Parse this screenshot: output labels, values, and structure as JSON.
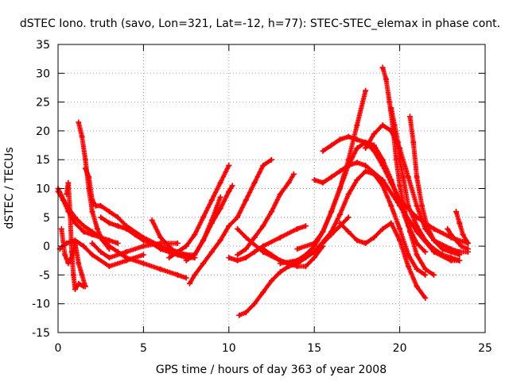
{
  "chart_data": {
    "type": "scatter",
    "title": "dSTEC Iono. truth (savo, Lon=321, Lat=-12, h=77): STEC-STEC_elemax in phase cont.",
    "xlabel": "GPS time / hours of day 363 of year 2008",
    "ylabel": "dSTEC  / TECUs",
    "xlim": [
      0,
      25
    ],
    "ylim": [
      -15,
      35
    ],
    "xticks": [
      0,
      5,
      10,
      15,
      20,
      25
    ],
    "yticks": [
      -15,
      -10,
      -5,
      0,
      5,
      10,
      15,
      20,
      25,
      30,
      35
    ],
    "grid": true,
    "marker": "+",
    "color": "#ff0000",
    "series": [
      {
        "x": [
          0.0,
          0.3,
          0.6,
          1.0,
          1.5,
          2.0,
          2.5,
          3.0,
          3.5
        ],
        "y": [
          9.5,
          8.0,
          6.0,
          4.0,
          2.5,
          2.0,
          1.5,
          1.0,
          0.5
        ]
      },
      {
        "x": [
          0.0,
          0.5,
          1.0,
          1.5,
          2.0,
          2.5,
          3.0,
          3.5,
          4.0,
          5.0,
          6.0,
          7.0,
          7.5
        ],
        "y": [
          10.0,
          7.0,
          5.0,
          3.5,
          2.5,
          1.5,
          0.0,
          -1.0,
          -2.0,
          -3.0,
          -4.0,
          -5.0,
          -5.5
        ]
      },
      {
        "x": [
          0.2,
          0.4,
          0.6,
          0.8,
          1.0,
          1.2,
          1.4,
          1.6
        ],
        "y": [
          3.0,
          -1.5,
          -3.0,
          -2.0,
          0.5,
          -3.0,
          -5.0,
          -7.0
        ]
      },
      {
        "x": [
          0.5,
          0.6,
          0.7,
          0.8,
          0.9,
          1.0,
          1.2,
          1.5
        ],
        "y": [
          9.0,
          11.0,
          6.0,
          -1.0,
          -5.0,
          -7.5,
          -6.5,
          -7.0
        ]
      },
      {
        "x": [
          0.1,
          0.5,
          1.0,
          1.5,
          2.0,
          3.0,
          4.0,
          5.0
        ],
        "y": [
          -0.5,
          0.5,
          1.0,
          0.0,
          -1.5,
          -3.5,
          -2.5,
          -1.5
        ]
      },
      {
        "x": [
          1.2,
          1.4,
          1.6,
          1.8,
          2.0,
          2.3,
          2.6,
          3.0
        ],
        "y": [
          21.5,
          19.0,
          15.0,
          10.0,
          6.0,
          3.0,
          1.0,
          -0.5
        ]
      },
      {
        "x": [
          1.6,
          1.8,
          2.0,
          2.2,
          2.5,
          3.0,
          3.5,
          4.0,
          5.0,
          6.0,
          7.0,
          7.5,
          8.0
        ],
        "y": [
          13.5,
          12.0,
          8.0,
          7.0,
          7.0,
          6.0,
          5.0,
          3.5,
          1.5,
          0.0,
          -1.0,
          -1.5,
          -2.0
        ]
      },
      {
        "x": [
          2.5,
          3.0,
          3.5,
          4.0,
          4.5,
          5.0,
          5.5,
          6.0,
          6.5,
          7.0,
          7.5,
          8.0
        ],
        "y": [
          5.0,
          4.0,
          3.5,
          3.0,
          2.0,
          1.0,
          0.5,
          -0.5,
          -1.0,
          -1.5,
          -2.0,
          -2.0
        ]
      },
      {
        "x": [
          2.0,
          2.5,
          3.0,
          4.0,
          5.0,
          6.0,
          7.0
        ],
        "y": [
          0.5,
          -1.0,
          -2.0,
          -1.0,
          0.0,
          0.5,
          0.5
        ]
      },
      {
        "x": [
          6.5,
          7.0,
          7.5,
          8.0,
          8.5,
          9.0,
          9.5,
          10.0
        ],
        "y": [
          -2.0,
          -1.0,
          0.0,
          2.0,
          5.0,
          8.0,
          11.0,
          14.0
        ]
      },
      {
        "x": [
          5.5,
          6.0,
          7.0,
          8.0,
          8.5,
          9.0,
          9.5
        ],
        "y": [
          4.5,
          1.5,
          -1.5,
          -1.5,
          1.0,
          4.5,
          8.5
        ]
      },
      {
        "x": [
          7.5,
          8.0,
          8.5,
          9.0,
          9.5,
          10.0,
          10.2
        ],
        "y": [
          -2.5,
          -1.5,
          1.0,
          4.0,
          6.5,
          9.5,
          10.5
        ]
      },
      {
        "x": [
          7.7,
          8.0,
          8.5,
          9.0,
          9.5,
          10.0,
          10.5,
          11.0,
          11.5,
          12.0,
          12.5
        ],
        "y": [
          -6.5,
          -5.0,
          -3.0,
          -1.0,
          1.0,
          3.5,
          5.0,
          8.0,
          11.0,
          14.0,
          15.0
        ]
      },
      {
        "x": [
          10.0,
          10.5,
          11.0,
          11.5,
          12.0,
          13.0,
          14.0,
          14.5
        ],
        "y": [
          -2.0,
          -2.5,
          -2.0,
          -1.0,
          0.0,
          1.5,
          3.0,
          3.5
        ]
      },
      {
        "x": [
          10.6,
          11.0,
          11.5,
          12.0,
          12.5,
          13.0,
          13.5,
          14.0,
          14.5,
          15.0,
          15.5,
          16.0,
          16.5,
          17.0
        ],
        "y": [
          -12.0,
          -11.5,
          -10.0,
          -8.0,
          -6.0,
          -4.5,
          -3.5,
          -3.0,
          -2.0,
          -1.0,
          0.5,
          2.0,
          3.5,
          5.0
        ]
      },
      {
        "x": [
          10.5,
          11.0,
          11.5,
          12.0,
          12.5,
          13.0,
          13.5,
          13.8
        ],
        "y": [
          -1.5,
          -0.5,
          1.5,
          3.5,
          6.0,
          9.0,
          11.0,
          12.5
        ]
      },
      {
        "x": [
          12.0,
          12.5,
          13.0,
          13.5,
          14.0,
          14.5,
          15.0,
          15.5,
          16.0,
          16.5,
          17.0,
          17.5,
          18.0
        ],
        "y": [
          -0.5,
          -1.5,
          -2.5,
          -3.0,
          -2.5,
          -1.5,
          0.0,
          2.5,
          6.0,
          10.0,
          15.0,
          21.0,
          27.0
        ]
      },
      {
        "x": [
          10.5,
          11.0,
          12.0,
          13.0,
          14.0,
          14.5,
          15.0,
          15.5
        ],
        "y": [
          3.0,
          1.5,
          -1.0,
          -2.5,
          -3.5,
          -3.5,
          -2.0,
          0.0
        ]
      },
      {
        "x": [
          13.0,
          14.0,
          15.0,
          16.0,
          16.5,
          17.0,
          17.5,
          18.0,
          18.5,
          19.0,
          19.5,
          20.0,
          20.5,
          21.0,
          21.5
        ],
        "y": [
          -3.0,
          -2.5,
          -1.0,
          2.5,
          5.5,
          9.0,
          11.5,
          13.0,
          12.5,
          10.5,
          7.0,
          3.0,
          -1.5,
          -4.0,
          -5.0
        ]
      },
      {
        "x": [
          14.0,
          15.0,
          15.5,
          16.0,
          16.5,
          17.0,
          17.5,
          18.0,
          18.5,
          19.0,
          19.5,
          20.0,
          20.5,
          21.0,
          21.5
        ],
        "y": [
          -0.5,
          0.5,
          2.5,
          6.0,
          10.0,
          14.0,
          17.0,
          18.0,
          17.5,
          15.0,
          11.5,
          7.5,
          3.5,
          0.5,
          -1.0
        ]
      },
      {
        "x": [
          15.0,
          15.5,
          16.0,
          16.5,
          17.0,
          17.5,
          18.0,
          19.0,
          20.0,
          21.0,
          22.0,
          23.0,
          23.5
        ],
        "y": [
          11.5,
          11.0,
          12.0,
          13.0,
          14.0,
          14.5,
          14.0,
          11.5,
          7.0,
          2.5,
          -1.0,
          -2.5,
          -2.5
        ]
      },
      {
        "x": [
          15.5,
          16.0,
          16.5,
          17.0,
          17.5,
          18.0,
          18.5,
          19.0,
          19.5,
          20.0,
          21.0,
          22.0,
          23.0,
          24.0
        ],
        "y": [
          16.5,
          17.5,
          18.5,
          19.0,
          18.5,
          18.0,
          16.5,
          14.0,
          11.0,
          8.0,
          5.0,
          3.0,
          1.5,
          0.5
        ]
      },
      {
        "x": [
          16.5,
          17.0,
          17.5,
          18.0,
          18.5,
          19.0,
          19.5,
          20.0,
          20.5,
          21.0,
          21.5
        ],
        "y": [
          4.0,
          2.5,
          1.0,
          0.5,
          1.5,
          3.0,
          4.0,
          1.0,
          -3.5,
          -7.0,
          -9.0
        ]
      },
      {
        "x": [
          18.0,
          18.5,
          19.0,
          19.5,
          20.0,
          20.5,
          21.0,
          21.5,
          22.0,
          23.0,
          23.5,
          24.0
        ],
        "y": [
          17.0,
          19.5,
          21.0,
          20.0,
          17.0,
          12.0,
          7.0,
          3.0,
          1.0,
          -0.5,
          -1.0,
          -1.0
        ]
      },
      {
        "x": [
          19.0,
          19.2,
          19.4,
          19.6,
          19.8,
          20.0,
          20.3,
          20.6,
          21.0,
          21.5,
          22.0
        ],
        "y": [
          31.0,
          29.0,
          25.0,
          20.5,
          15.0,
          10.5,
          6.0,
          2.5,
          -1.5,
          -4.0,
          -5.0
        ]
      },
      {
        "x": [
          19.5,
          19.7,
          19.9,
          20.0,
          20.2,
          20.5,
          21.0,
          21.5,
          22.0,
          22.5,
          23.0,
          23.5
        ],
        "y": [
          24.0,
          21.0,
          18.0,
          15.0,
          12.0,
          7.0,
          3.5,
          1.0,
          -0.5,
          -1.5,
          -2.0,
          -2.5
        ]
      },
      {
        "x": [
          20.6,
          20.8,
          21.0,
          21.3,
          21.6,
          22.0,
          22.5,
          23.0,
          23.5
        ],
        "y": [
          22.5,
          18.0,
          12.0,
          7.0,
          3.5,
          1.0,
          -0.5,
          -1.0,
          -1.5
        ]
      },
      {
        "x": [
          23.3,
          23.5,
          23.7,
          24.0
        ],
        "y": [
          6.0,
          4.0,
          2.0,
          0.5
        ]
      },
      {
        "x": [
          22.8,
          23.0,
          23.3,
          23.6,
          24.0
        ],
        "y": [
          3.0,
          2.0,
          1.0,
          0.0,
          -0.5
        ]
      }
    ]
  }
}
